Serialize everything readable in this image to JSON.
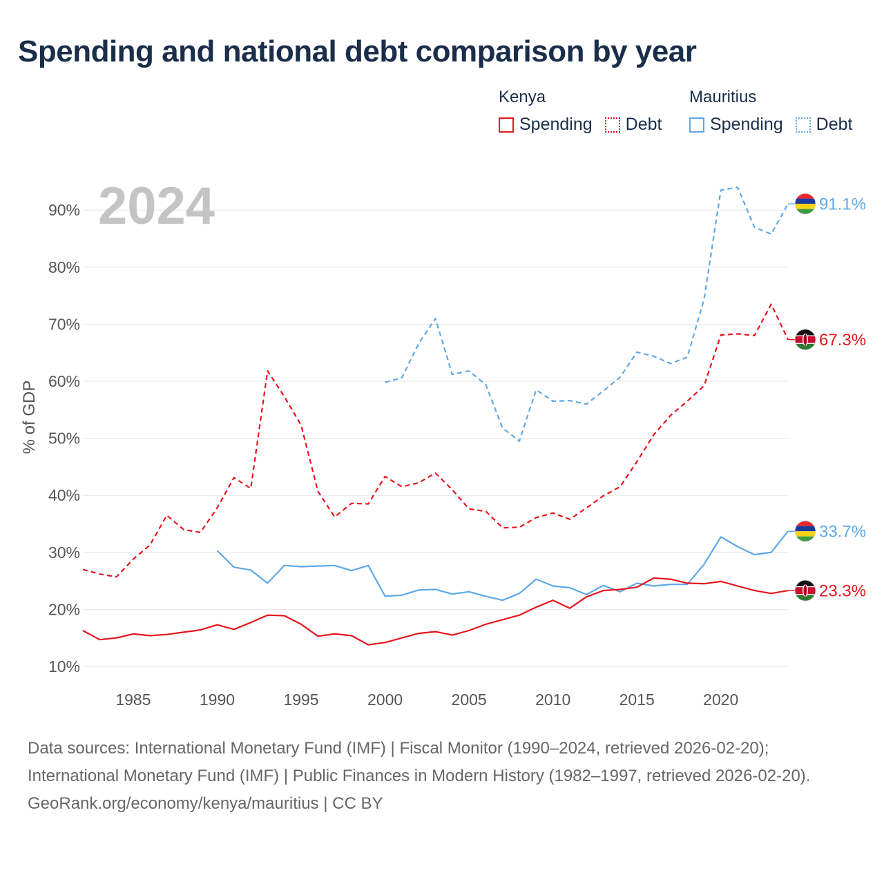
{
  "title": "Spending and national debt comparison by year",
  "legend": {
    "groups": [
      {
        "name": "Kenya",
        "color": "#e8141c",
        "items": [
          {
            "label": "Spending",
            "style": "solid"
          },
          {
            "label": "Debt",
            "style": "dotted"
          }
        ]
      },
      {
        "name": "Mauritius",
        "color": "#5fa8e6",
        "items": [
          {
            "label": "Spending",
            "style": "solid"
          },
          {
            "label": "Debt",
            "style": "dotted"
          }
        ]
      }
    ]
  },
  "footer": {
    "sources": "Data sources: International Monetary Fund (IMF) | Fiscal Monitor (1990–2024, retrieved 2026-02-20); International Monetary Fund (IMF) | Public Finances in Modern History (1982–1997, retrieved 2026-02-20).",
    "attribution": "GeoRank.org/economy/kenya/mauritius | CC BY"
  },
  "chart_data": {
    "type": "line",
    "title": "Spending and national debt comparison by year",
    "year_label": "2024",
    "ylabel": "% of GDP",
    "xlabel": "",
    "xlim": [
      1982,
      2024
    ],
    "ylim": [
      10,
      95
    ],
    "yticks": [
      10,
      20,
      30,
      40,
      50,
      60,
      70,
      80,
      90
    ],
    "ytick_labels": [
      "10%",
      "20%",
      "30%",
      "40%",
      "50%",
      "60%",
      "70%",
      "80%",
      "90%"
    ],
    "xticks": [
      1985,
      1990,
      1995,
      2000,
      2005,
      2010,
      2015,
      2020
    ],
    "xtick_labels": [
      "1985",
      "1990",
      "1995",
      "2000",
      "2005",
      "2010",
      "2015",
      "2020"
    ],
    "grid": true,
    "legend_position": "top-right",
    "series": [
      {
        "name": "Kenya Debt",
        "country": "Kenya",
        "metric": "Debt",
        "color": "#e8141c",
        "dash": true,
        "end_label": "67.3%",
        "x": [
          1982,
          1983,
          1984,
          1985,
          1986,
          1987,
          1988,
          1989,
          1990,
          1991,
          1992,
          1993,
          1994,
          1995,
          1996,
          1997,
          1998,
          1999,
          2000,
          2001,
          2002,
          2003,
          2004,
          2005,
          2006,
          2007,
          2008,
          2009,
          2010,
          2011,
          2012,
          2013,
          2014,
          2015,
          2016,
          2017,
          2018,
          2019,
          2020,
          2021,
          2022,
          2023,
          2024
        ],
        "y": [
          27.0,
          26.2,
          25.7,
          28.8,
          31.3,
          36.5,
          34.0,
          33.5,
          37.8,
          43.1,
          41.2,
          61.8,
          57.3,
          52.3,
          40.7,
          36.2,
          38.6,
          38.5,
          43.3,
          41.5,
          42.2,
          43.9,
          41.0,
          37.6,
          37.2,
          34.3,
          34.4,
          36.1,
          36.9,
          35.8,
          37.8,
          39.9,
          41.5,
          45.9,
          50.6,
          54.0,
          56.5,
          59.2,
          68.1,
          68.3,
          68.0,
          73.5,
          67.3
        ]
      },
      {
        "name": "Mauritius Debt",
        "country": "Mauritius",
        "metric": "Debt",
        "color": "#5fa8e6",
        "dash": true,
        "end_label": "91.1%",
        "x": [
          2000,
          2001,
          2002,
          2003,
          2004,
          2005,
          2006,
          2007,
          2008,
          2009,
          2010,
          2011,
          2012,
          2013,
          2014,
          2015,
          2016,
          2017,
          2018,
          2019,
          2020,
          2021,
          2022,
          2023,
          2024
        ],
        "y": [
          59.8,
          60.6,
          66.6,
          71.0,
          61.2,
          61.8,
          59.4,
          51.8,
          49.5,
          58.5,
          56.5,
          56.6,
          56.0,
          58.3,
          60.7,
          65.1,
          64.4,
          63.1,
          64.2,
          74.4,
          93.5,
          94.0,
          87.0,
          85.8,
          91.1
        ]
      },
      {
        "name": "Mauritius Spending",
        "country": "Mauritius",
        "metric": "Spending",
        "color": "#5fa8e6",
        "dash": false,
        "end_label": "33.7%",
        "x": [
          1990,
          1991,
          1992,
          1993,
          1994,
          1995,
          1996,
          1997,
          1998,
          1999,
          2000,
          2001,
          2002,
          2003,
          2004,
          2005,
          2006,
          2007,
          2008,
          2009,
          2010,
          2011,
          2012,
          2013,
          2014,
          2015,
          2016,
          2017,
          2018,
          2019,
          2020,
          2021,
          2022,
          2023,
          2024
        ],
        "y": [
          30.3,
          27.4,
          26.9,
          24.6,
          27.7,
          27.5,
          27.6,
          27.7,
          26.8,
          27.7,
          22.3,
          22.5,
          23.4,
          23.5,
          22.7,
          23.1,
          22.3,
          21.6,
          22.8,
          25.3,
          24.1,
          23.8,
          22.6,
          24.2,
          23.1,
          24.6,
          24.1,
          24.4,
          24.4,
          27.9,
          32.7,
          31.0,
          29.6,
          30.0,
          33.7
        ]
      },
      {
        "name": "Kenya Spending",
        "country": "Kenya",
        "metric": "Spending",
        "color": "#e8141c",
        "dash": false,
        "end_label": "23.3%",
        "x": [
          1982,
          1983,
          1984,
          1985,
          1986,
          1987,
          1988,
          1989,
          1990,
          1991,
          1992,
          1993,
          1994,
          1995,
          1996,
          1997,
          1998,
          1999,
          2000,
          2001,
          2002,
          2003,
          2004,
          2005,
          2006,
          2007,
          2008,
          2009,
          2010,
          2011,
          2012,
          2013,
          2014,
          2015,
          2016,
          2017,
          2018,
          2019,
          2020,
          2021,
          2022,
          2023,
          2024
        ],
        "y": [
          16.3,
          14.7,
          15.0,
          15.7,
          15.4,
          15.6,
          16.0,
          16.4,
          17.3,
          16.5,
          17.7,
          19.0,
          18.9,
          17.4,
          15.3,
          15.7,
          15.4,
          13.8,
          14.2,
          15.0,
          15.8,
          16.1,
          15.5,
          16.3,
          17.4,
          18.2,
          19.0,
          20.4,
          21.6,
          20.2,
          22.2,
          23.3,
          23.5,
          23.9,
          25.5,
          25.3,
          24.6,
          24.5,
          24.9,
          24.1,
          23.3,
          22.8,
          23.3
        ]
      }
    ]
  }
}
